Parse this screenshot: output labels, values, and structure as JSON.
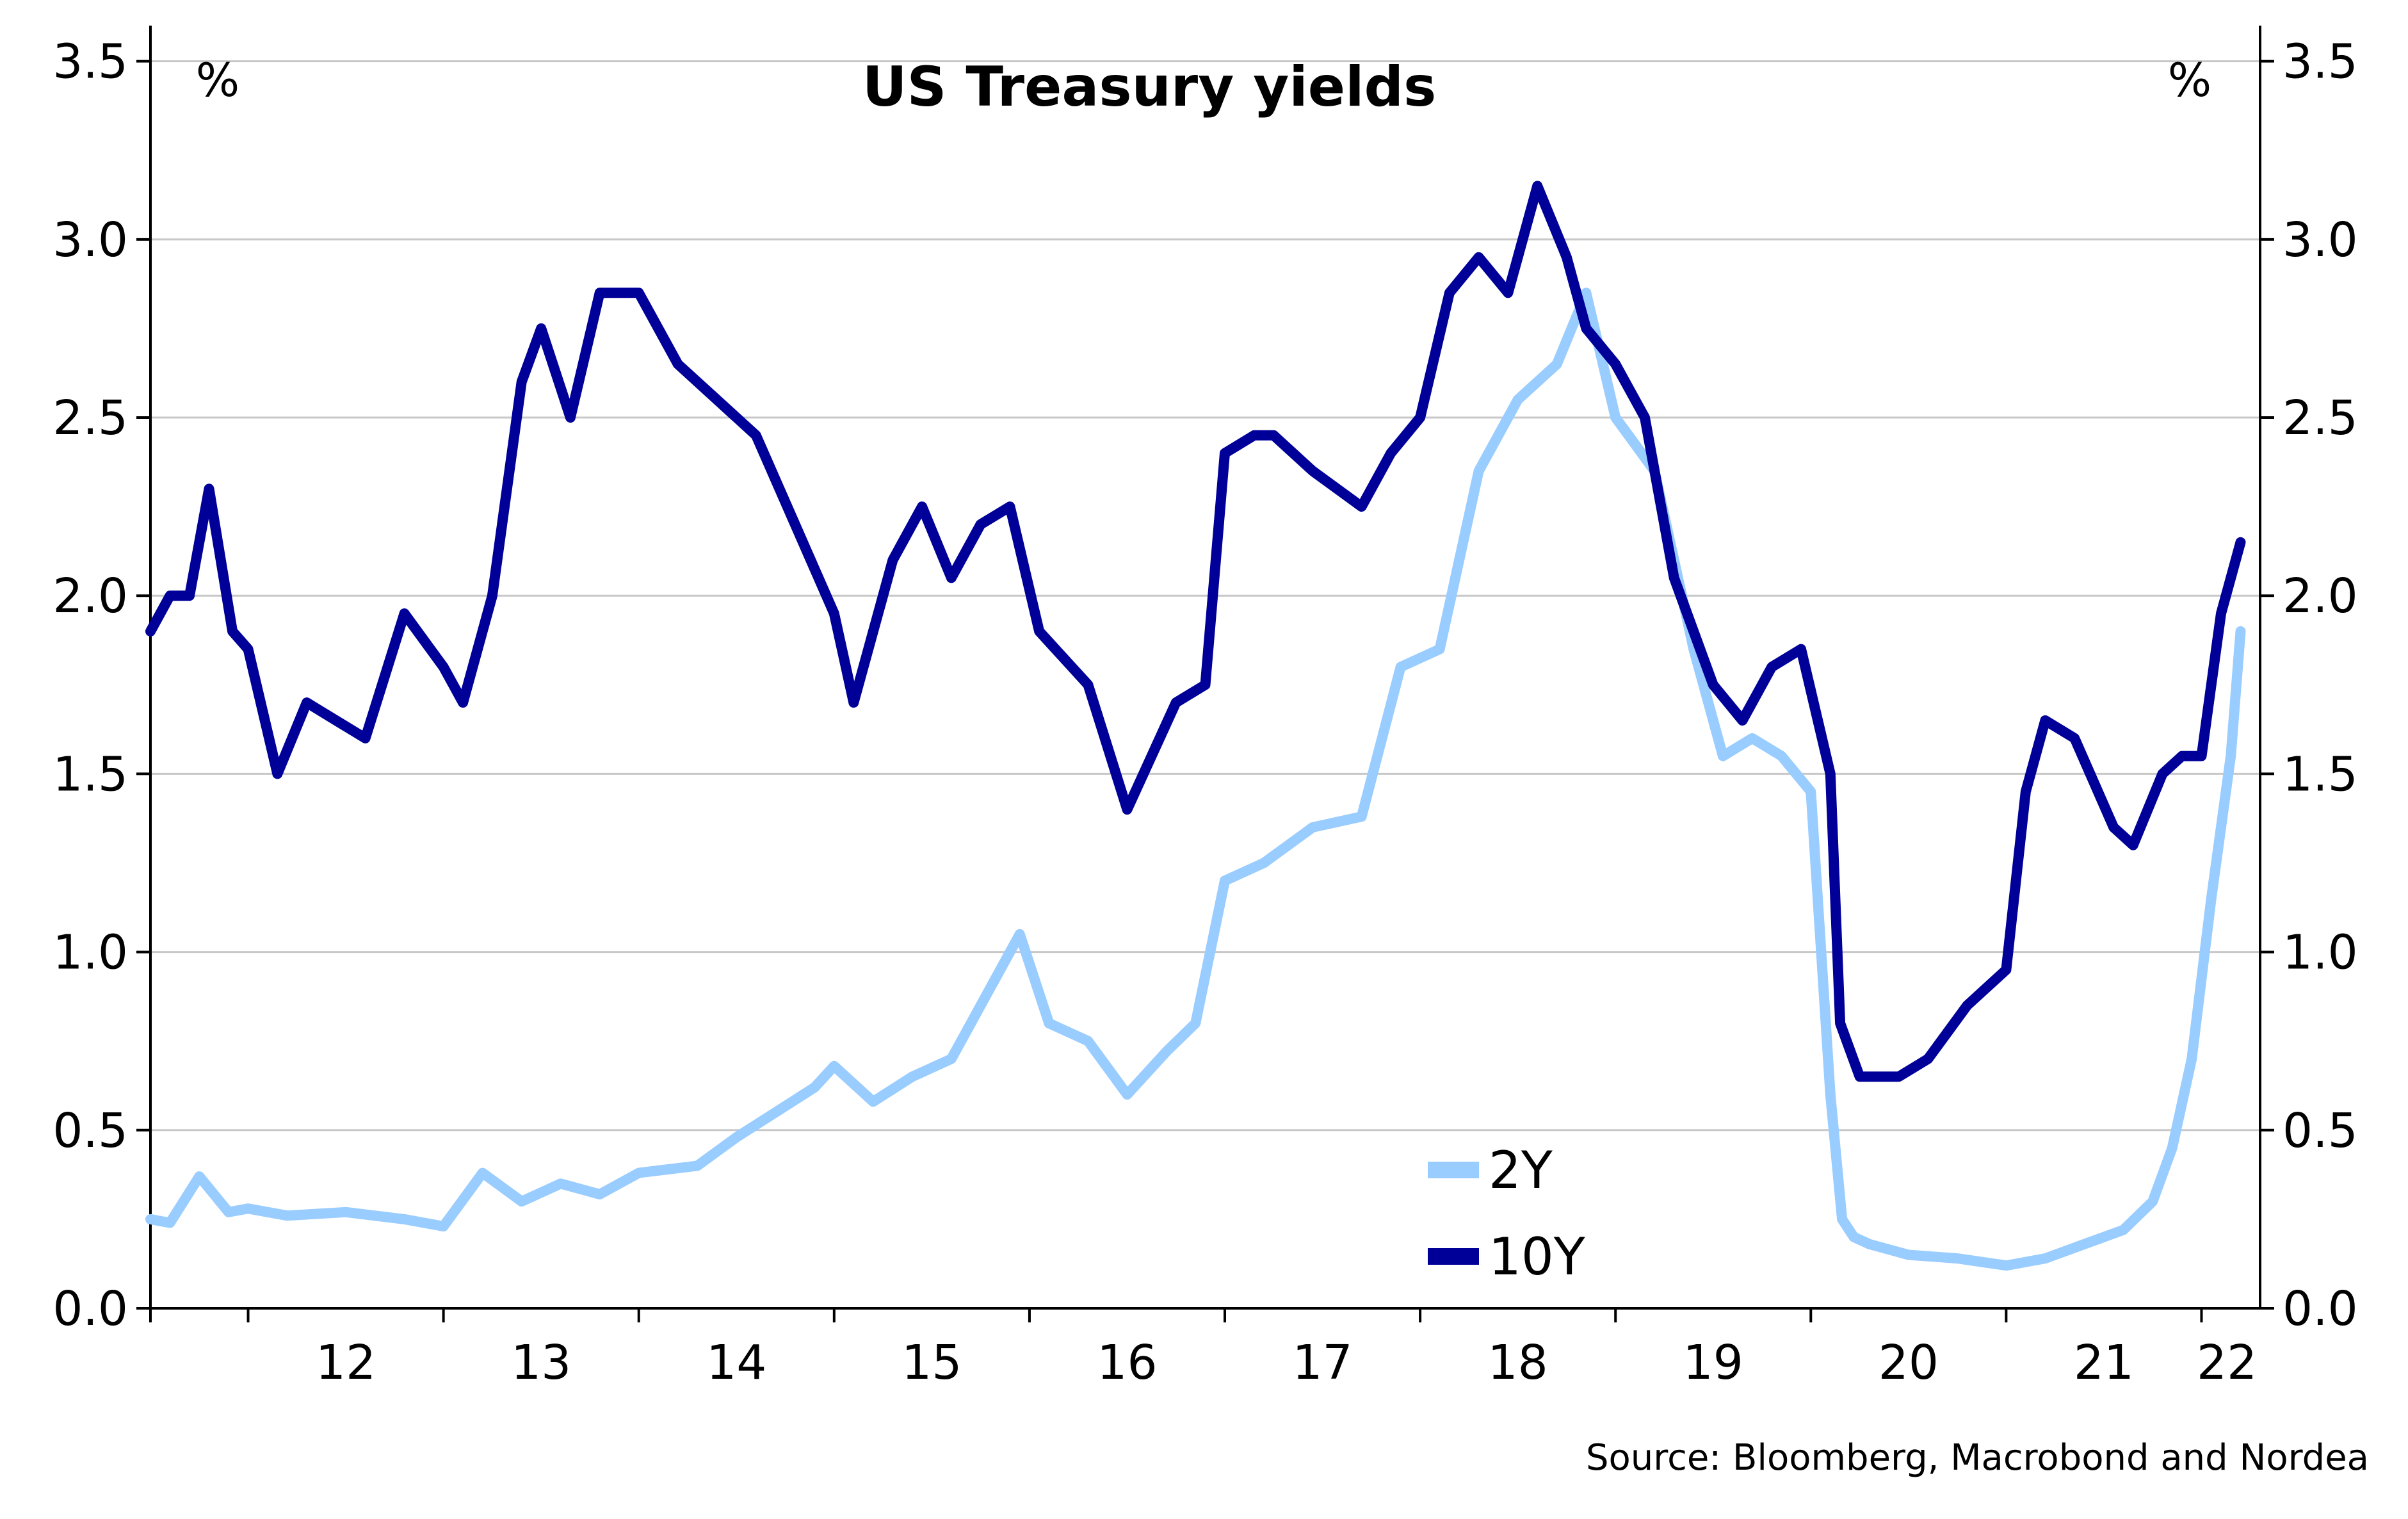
{
  "chart_data": {
    "type": "line",
    "title": "US Treasury yields",
    "y_unit_left": "%",
    "y_unit_right": "%",
    "ylim": [
      0.0,
      3.6
    ],
    "yticks": [
      "0.0",
      "0.5",
      "1.0",
      "1.5",
      "2.0",
      "2.5",
      "3.0",
      "3.5"
    ],
    "xlim": [
      2011.5,
      2022.3
    ],
    "xtick_labels": [
      {
        "label": "12",
        "year": 2012
      },
      {
        "label": "13",
        "year": 2013
      },
      {
        "label": "14",
        "year": 2014
      },
      {
        "label": "15",
        "year": 2015
      },
      {
        "label": "16",
        "year": 2016
      },
      {
        "label": "17",
        "year": 2017
      },
      {
        "label": "18",
        "year": 2018
      },
      {
        "label": "19",
        "year": 2019
      },
      {
        "label": "20",
        "year": 2020
      },
      {
        "label": "21",
        "year": 2021
      },
      {
        "label": "22",
        "year": 2022
      }
    ],
    "grid": "horizontal",
    "legend_position": "bottom-center",
    "source": "Source: Bloomberg, Macrobond and Nordea",
    "series": [
      {
        "name": "2Y",
        "color": "#99ccff",
        "x": [
          2011.5,
          2011.6,
          2011.75,
          2011.9,
          2012.0,
          2012.2,
          2012.5,
          2012.8,
          2013.0,
          2013.2,
          2013.4,
          2013.6,
          2013.8,
          2014.0,
          2014.3,
          2014.5,
          2014.7,
          2014.9,
          2015.0,
          2015.2,
          2015.4,
          2015.6,
          2015.8,
          2015.95,
          2016.1,
          2016.3,
          2016.5,
          2016.7,
          2016.85,
          2017.0,
          2017.2,
          2017.45,
          2017.7,
          2017.9,
          2018.1,
          2018.3,
          2018.5,
          2018.7,
          2018.85,
          2019.0,
          2019.2,
          2019.4,
          2019.55,
          2019.7,
          2019.85,
          2020.0,
          2020.1,
          2020.16,
          2020.22,
          2020.3,
          2020.5,
          2020.75,
          2021.0,
          2021.2,
          2021.4,
          2021.6,
          2021.75,
          2021.85,
          2021.95,
          2022.05,
          2022.15,
          2022.2
        ],
        "values": [
          0.25,
          0.24,
          0.37,
          0.27,
          0.28,
          0.26,
          0.27,
          0.25,
          0.23,
          0.38,
          0.3,
          0.35,
          0.32,
          0.38,
          0.4,
          0.48,
          0.55,
          0.62,
          0.68,
          0.58,
          0.65,
          0.7,
          0.9,
          1.05,
          0.8,
          0.75,
          0.6,
          0.72,
          0.8,
          1.2,
          1.25,
          1.35,
          1.38,
          1.8,
          1.85,
          2.35,
          2.55,
          2.65,
          2.85,
          2.5,
          2.35,
          1.85,
          1.55,
          1.6,
          1.55,
          1.45,
          0.6,
          0.25,
          0.2,
          0.18,
          0.15,
          0.14,
          0.12,
          0.14,
          0.18,
          0.22,
          0.3,
          0.45,
          0.7,
          1.15,
          1.55,
          1.9
        ]
      },
      {
        "name": "10Y",
        "color": "#000099",
        "x": [
          2011.5,
          2011.6,
          2011.7,
          2011.8,
          2011.92,
          2012.0,
          2012.15,
          2012.3,
          2012.45,
          2012.6,
          2012.8,
          2013.0,
          2013.1,
          2013.25,
          2013.4,
          2013.5,
          2013.65,
          2013.8,
          2014.0,
          2014.2,
          2014.4,
          2014.6,
          2014.8,
          2015.0,
          2015.1,
          2015.3,
          2015.45,
          2015.6,
          2015.75,
          2015.9,
          2016.05,
          2016.3,
          2016.5,
          2016.75,
          2016.9,
          2017.0,
          2017.15,
          2017.25,
          2017.45,
          2017.7,
          2017.85,
          2018.0,
          2018.15,
          2018.3,
          2018.45,
          2018.6,
          2018.75,
          2018.85,
          2019.0,
          2019.15,
          2019.3,
          2019.5,
          2019.65,
          2019.8,
          2019.95,
          2020.1,
          2020.15,
          2020.25,
          2020.45,
          2020.6,
          2020.8,
          2021.0,
          2021.1,
          2021.2,
          2021.35,
          2021.55,
          2021.65,
          2021.8,
          2021.9,
          2022.0,
          2022.1,
          2022.2
        ],
        "values": [
          1.9,
          2.0,
          2.0,
          2.3,
          1.9,
          1.85,
          1.5,
          1.7,
          1.65,
          1.6,
          1.95,
          1.8,
          1.7,
          2.0,
          2.6,
          2.75,
          2.5,
          2.85,
          2.85,
          2.65,
          2.55,
          2.45,
          2.2,
          1.95,
          1.7,
          2.1,
          2.25,
          2.05,
          2.2,
          2.25,
          1.9,
          1.75,
          1.4,
          1.7,
          1.75,
          2.4,
          2.45,
          2.45,
          2.35,
          2.25,
          2.4,
          2.5,
          2.85,
          2.95,
          2.85,
          3.15,
          2.95,
          2.75,
          2.65,
          2.5,
          2.05,
          1.75,
          1.65,
          1.8,
          1.85,
          1.5,
          0.8,
          0.65,
          0.65,
          0.7,
          0.85,
          0.95,
          1.45,
          1.65,
          1.6,
          1.35,
          1.3,
          1.5,
          1.55,
          1.55,
          1.95,
          2.15
        ]
      }
    ]
  }
}
